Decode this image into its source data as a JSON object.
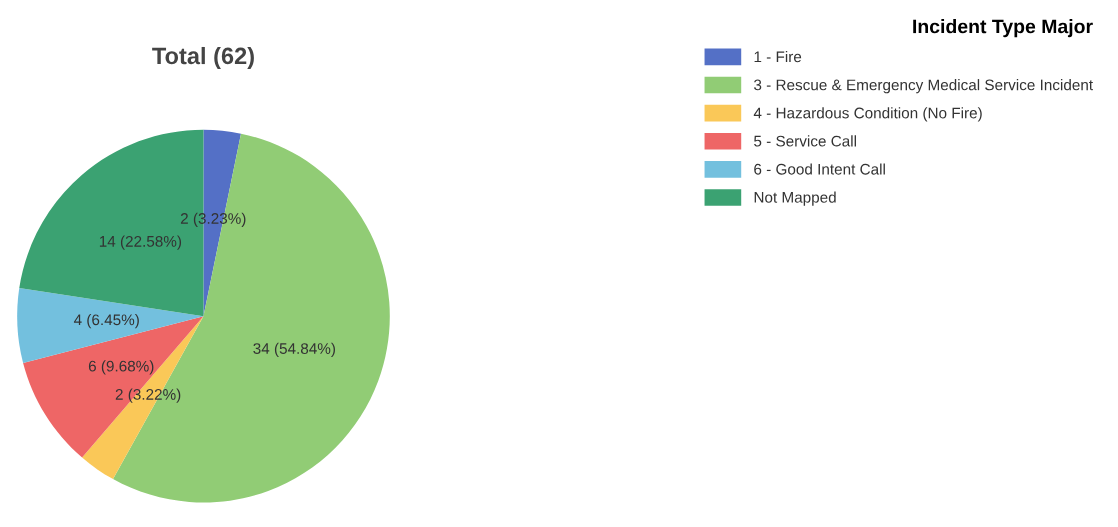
{
  "chart_data": {
    "type": "pie",
    "title": "Total (62)",
    "legend_title": "Incident Type Major",
    "categories": [
      "1 - Fire",
      "3 - Rescue & Emergency Medical Service Incident",
      "4 - Hazardous Condition (No Fire)",
      "5 - Service Call",
      "6 - Good Intent Call",
      "Not Mapped"
    ],
    "values": [
      2,
      34,
      2,
      6,
      4,
      14
    ],
    "colors": [
      "#5470c6",
      "#91cc75",
      "#fac858",
      "#ee6666",
      "#73c0de",
      "#3ba272"
    ],
    "value_labels": [
      "2 (3.23%)",
      "34 (54.84%)",
      "2 (3.22%)",
      "6 (9.68%)",
      "4 (6.45%)",
      "14 (22.58%)"
    ],
    "legend": "top right"
  }
}
